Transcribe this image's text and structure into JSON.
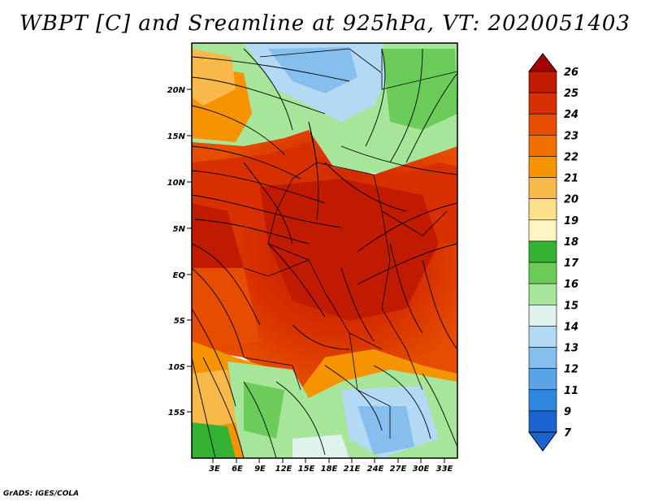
{
  "title": "WBPT [C] and Sreamline at 925hPa, VT: 2020051403",
  "credit": "GrADS: IGES/COLA",
  "map": {
    "lat_labels": [
      "20N",
      "15N",
      "10N",
      "5N",
      "EQ",
      "5S",
      "10S",
      "15S"
    ],
    "lon_labels": [
      "3E",
      "6E",
      "9E",
      "12E",
      "15E",
      "18E",
      "21E",
      "24E",
      "27E",
      "30E",
      "33E"
    ]
  },
  "colorbar": {
    "labels": [
      "26",
      "25",
      "24",
      "23",
      "22",
      "21",
      "20",
      "19",
      "18",
      "17",
      "16",
      "15",
      "14",
      "13",
      "12",
      "11",
      "9",
      "7"
    ],
    "colors": [
      "#a50000",
      "#c01a00",
      "#d62f00",
      "#e64d00",
      "#f07000",
      "#f59400",
      "#f8b84a",
      "#fde08a",
      "#fef5c3",
      "#33b233",
      "#6ccc5a",
      "#a6e59a",
      "#dff3ee",
      "#b3d9f5",
      "#86bfee",
      "#5aa3e6",
      "#2e86de",
      "#1b63cf"
    ]
  }
}
